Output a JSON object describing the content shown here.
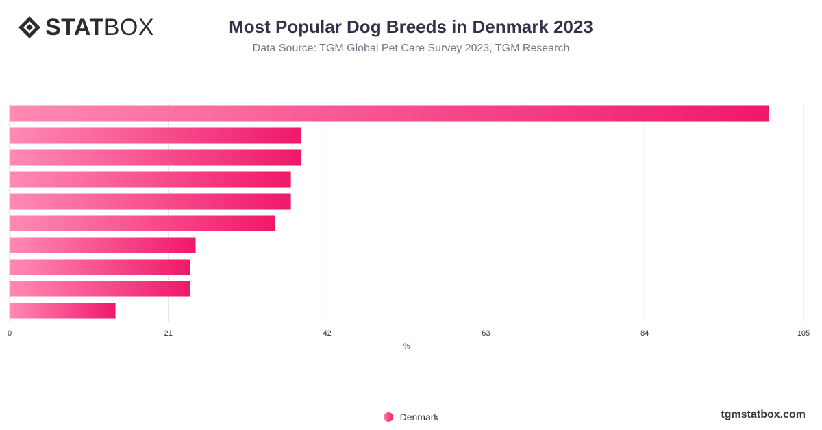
{
  "brand": {
    "logo_strong": "STAT",
    "logo_light": "BOX",
    "site": "tgmstatbox.com"
  },
  "header": {
    "title": "Most Popular Dog Breeds in Denmark 2023",
    "subtitle": "Data Source: TGM Global Pet Care Survey 2023, TGM Research"
  },
  "legend": {
    "label": "Denmark"
  },
  "colors": {
    "bar_start": "#ff8ab4",
    "bar_end": "#f0186a",
    "grid": "#dddddd",
    "axis_text": "#333333"
  },
  "chart_data": {
    "type": "bar",
    "orientation": "horizontal",
    "categories": [
      "",
      "",
      "",
      "",
      "",
      "",
      "",
      "",
      "",
      ""
    ],
    "series": [
      {
        "name": "Denmark",
        "values": [
          100.4,
          38.6,
          38.6,
          37.2,
          37.2,
          35.1,
          24.6,
          23.9,
          23.9,
          14.0
        ]
      }
    ],
    "xlabel": "%",
    "ylabel": "",
    "xlim": [
      0,
      105
    ],
    "xticks": [
      0,
      21,
      42,
      63,
      84,
      105
    ],
    "grid": true,
    "legend_position": "bottom"
  }
}
